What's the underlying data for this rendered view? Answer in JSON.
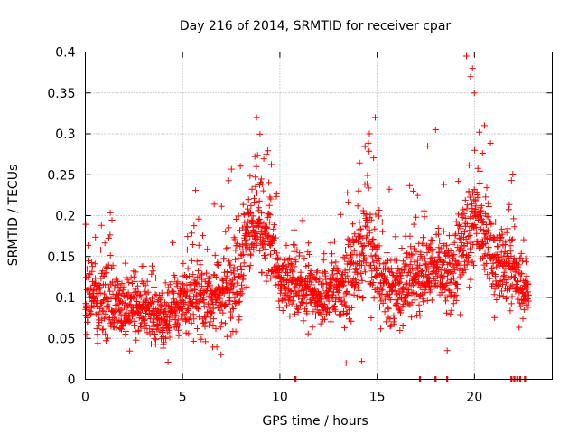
{
  "chart_data": {
    "type": "scatter",
    "title": "Day 216 of 2014, SRMTID for receiver cpar",
    "xlabel": "GPS time / hours",
    "ylabel": "SRMTID / TECUs",
    "xlim": [
      0,
      24
    ],
    "ylim": [
      0,
      0.4
    ],
    "x_ticks": [
      0,
      5,
      10,
      15,
      20
    ],
    "x_tick_labels": [
      "0",
      "5",
      "10",
      "15",
      "20"
    ],
    "y_ticks": [
      0,
      0.05,
      0.1,
      0.15,
      0.2,
      0.25,
      0.3,
      0.35,
      0.4
    ],
    "y_tick_labels": [
      "0",
      "0.05",
      "0.1",
      "0.15",
      "0.2",
      "0.25",
      "0.3",
      "0.35",
      "0.4"
    ],
    "grid": true,
    "marker": "+",
    "series": [
      {
        "name": "SRMTID",
        "color": "#ff0000",
        "envelope": {
          "note": "Dense scatter of ~2500 points; data summarised as per-hour typical level, spread and upper extent (TECU).",
          "hours": [
            0,
            1,
            2,
            3,
            4,
            5,
            6,
            7,
            8,
            8.5,
            9,
            9.5,
            10,
            11,
            12,
            13,
            14,
            14.5,
            15,
            16,
            17,
            18,
            19,
            19.5,
            20,
            20.5,
            21,
            22,
            22.7
          ],
          "center": [
            0.1,
            0.095,
            0.085,
            0.085,
            0.08,
            0.1,
            0.1,
            0.1,
            0.13,
            0.19,
            0.17,
            0.18,
            0.12,
            0.11,
            0.1,
            0.11,
            0.14,
            0.17,
            0.12,
            0.11,
            0.12,
            0.13,
            0.13,
            0.17,
            0.2,
            0.18,
            0.14,
            0.13,
            0.1
          ],
          "spread": [
            0.025,
            0.03,
            0.025,
            0.025,
            0.025,
            0.03,
            0.03,
            0.035,
            0.035,
            0.04,
            0.04,
            0.03,
            0.025,
            0.025,
            0.025,
            0.03,
            0.035,
            0.04,
            0.03,
            0.03,
            0.03,
            0.03,
            0.035,
            0.04,
            0.045,
            0.04,
            0.03,
            0.03,
            0.02
          ]
        },
        "peaks": [
          {
            "x": 8.8,
            "y": 0.32
          },
          {
            "x": 9.3,
            "y": 0.275
          },
          {
            "x": 14.9,
            "y": 0.32
          },
          {
            "x": 14.6,
            "y": 0.3
          },
          {
            "x": 17.6,
            "y": 0.285
          },
          {
            "x": 18.0,
            "y": 0.305
          },
          {
            "x": 19.9,
            "y": 0.38
          },
          {
            "x": 19.8,
            "y": 0.37
          },
          {
            "x": 20.0,
            "y": 0.35
          },
          {
            "x": 21.9,
            "y": 0.243
          },
          {
            "x": 18.6,
            "y": 0.035
          },
          {
            "x": 13.4,
            "y": 0.02
          },
          {
            "x": 14.2,
            "y": 0.022
          }
        ],
        "zero_values_x": [
          10.8,
          17.2,
          18.0,
          18.6,
          21.9,
          22.05,
          22.2,
          22.35,
          22.6
        ],
        "end_hour": 22.8
      }
    ]
  }
}
